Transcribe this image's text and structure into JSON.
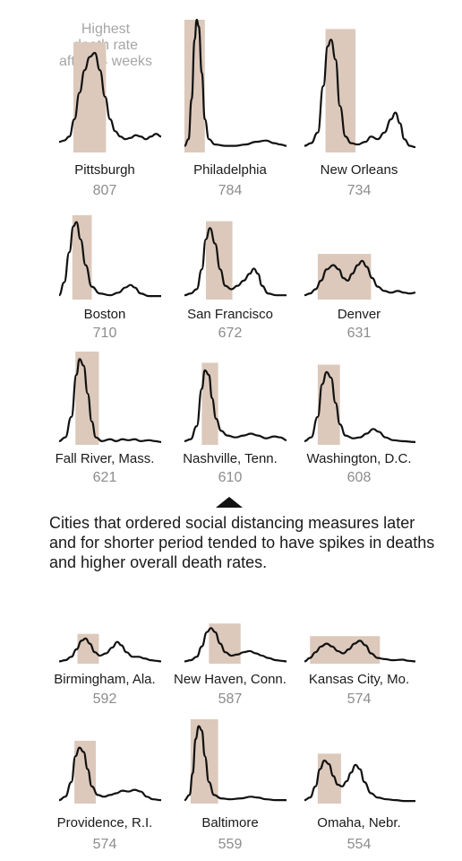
{
  "annotation": "Highest\ndeath rate\nafter 24 weeks",
  "caption": "Cities that ordered social distancing measures later and for shorter period tended to have spikes in deaths and higher overall death rates.",
  "colors": {
    "line": "#111111",
    "band": "#dcc9bb",
    "rate_text": "#8c8c8c"
  },
  "chart_data": {
    "type": "line",
    "small_multiples": true,
    "series_shape": "weekly death rate curve (unlabeled axes)",
    "cities": [
      {
        "name": "Pittsburgh",
        "rate": "807",
        "band": [
          0.14,
          0.46
        ],
        "curve": [
          [
            0,
            0.08
          ],
          [
            0.05,
            0.09
          ],
          [
            0.1,
            0.12
          ],
          [
            0.15,
            0.25
          ],
          [
            0.2,
            0.45
          ],
          [
            0.25,
            0.62
          ],
          [
            0.3,
            0.72
          ],
          [
            0.35,
            0.75
          ],
          [
            0.4,
            0.62
          ],
          [
            0.45,
            0.42
          ],
          [
            0.5,
            0.25
          ],
          [
            0.55,
            0.16
          ],
          [
            0.6,
            0.12
          ],
          [
            0.65,
            0.1
          ],
          [
            0.7,
            0.11
          ],
          [
            0.75,
            0.13
          ],
          [
            0.8,
            0.12
          ],
          [
            0.85,
            0.1
          ],
          [
            0.9,
            0.12
          ],
          [
            0.95,
            0.14
          ],
          [
            1,
            0.12
          ]
        ]
      },
      {
        "name": "Philadelphia",
        "rate": "784",
        "band": [
          0.0,
          0.2
        ],
        "curve": [
          [
            0,
            0.05
          ],
          [
            0.04,
            0.1
          ],
          [
            0.07,
            0.4
          ],
          [
            0.1,
            0.85
          ],
          [
            0.12,
            1.0
          ],
          [
            0.14,
            0.95
          ],
          [
            0.17,
            0.6
          ],
          [
            0.2,
            0.25
          ],
          [
            0.24,
            0.1
          ],
          [
            0.3,
            0.06
          ],
          [
            0.4,
            0.05
          ],
          [
            0.5,
            0.05
          ],
          [
            0.6,
            0.06
          ],
          [
            0.7,
            0.08
          ],
          [
            0.8,
            0.09
          ],
          [
            0.88,
            0.07
          ],
          [
            0.94,
            0.06
          ],
          [
            1,
            0.05
          ]
        ]
      },
      {
        "name": "New Orleans",
        "rate": "734",
        "band": [
          0.19,
          0.46
        ],
        "curve": [
          [
            0,
            0.05
          ],
          [
            0.06,
            0.07
          ],
          [
            0.12,
            0.15
          ],
          [
            0.17,
            0.5
          ],
          [
            0.21,
            0.8
          ],
          [
            0.24,
            0.85
          ],
          [
            0.28,
            0.7
          ],
          [
            0.32,
            0.35
          ],
          [
            0.37,
            0.12
          ],
          [
            0.42,
            0.07
          ],
          [
            0.48,
            0.06
          ],
          [
            0.55,
            0.08
          ],
          [
            0.6,
            0.12
          ],
          [
            0.66,
            0.1
          ],
          [
            0.72,
            0.15
          ],
          [
            0.78,
            0.25
          ],
          [
            0.82,
            0.3
          ],
          [
            0.86,
            0.22
          ],
          [
            0.9,
            0.1
          ],
          [
            0.95,
            0.05
          ],
          [
            1,
            0.04
          ]
        ]
      }
    ]
  }
}
